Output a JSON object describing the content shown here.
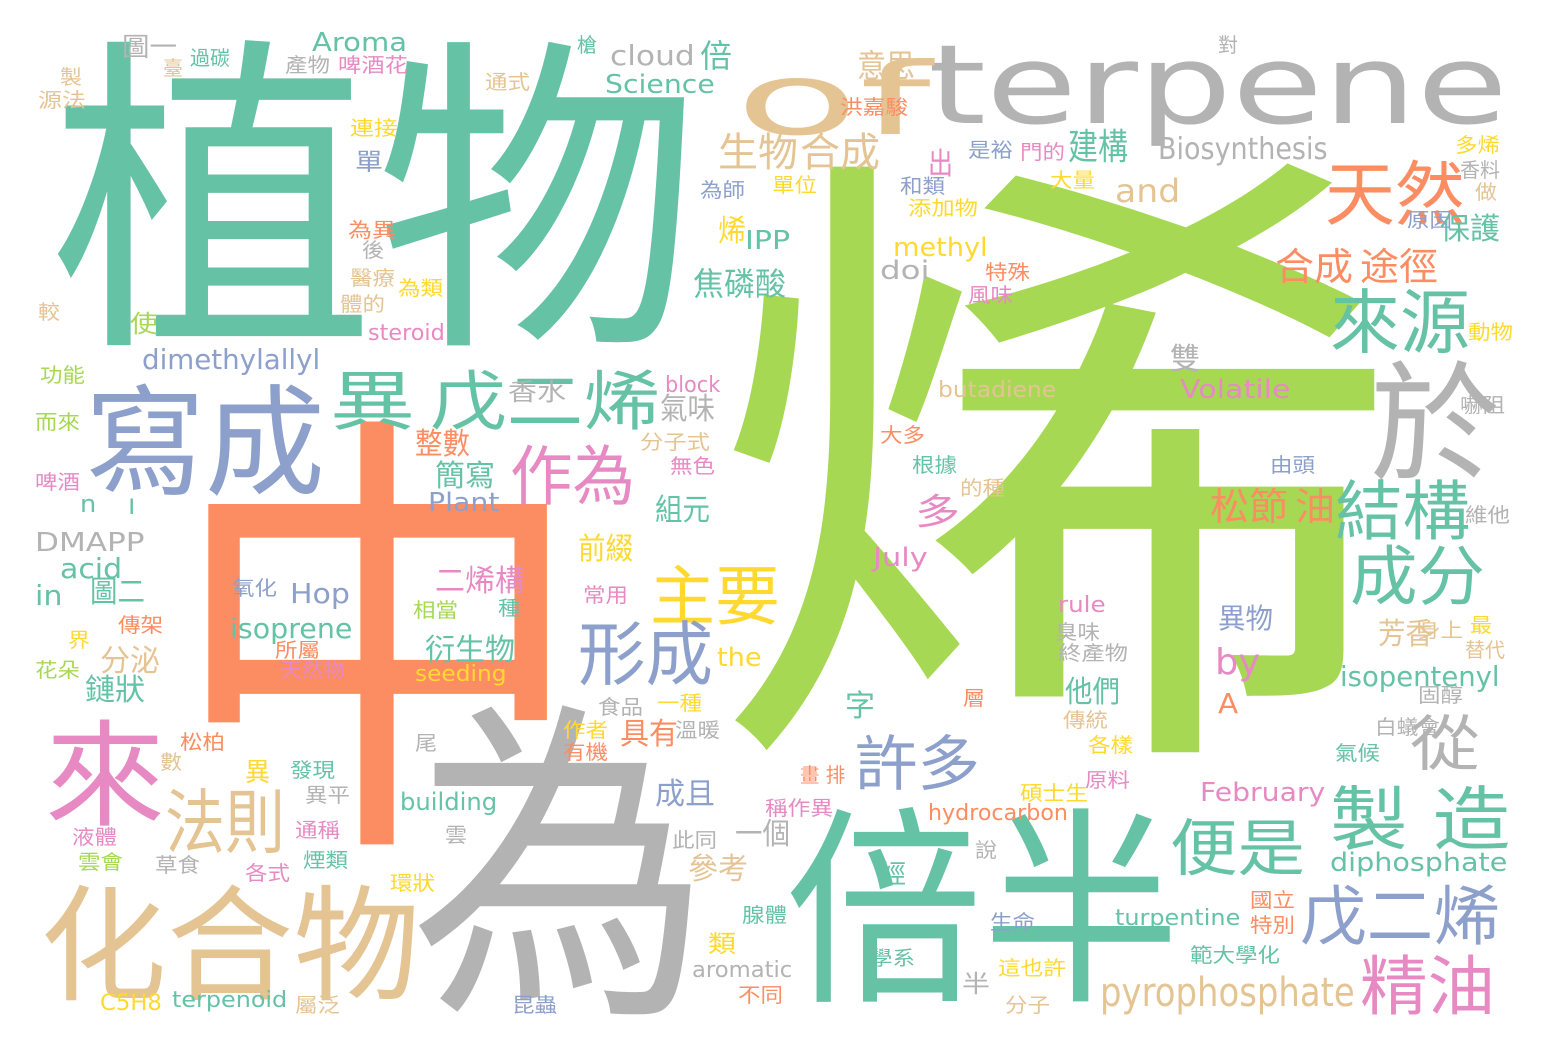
{
  "palette": {
    "green": "#66c2a5",
    "orange": "#fc8d62",
    "blue": "#8da0cb",
    "pink": "#e78ac3",
    "lime": "#a6d854",
    "yellow": "#ffd92f",
    "tan": "#e5c494",
    "gray": "#b3b3b3"
  },
  "words": [
    {
      "text": "烯",
      "color": "lime"
    },
    {
      "text": "中",
      "color": "orange"
    },
    {
      "text": "植物",
      "color": "green"
    },
    {
      "text": "為",
      "color": "gray"
    },
    {
      "text": "terpene",
      "color": "gray"
    },
    {
      "text": "倍半",
      "color": "green"
    },
    {
      "text": "寫成",
      "color": "blue"
    },
    {
      "text": "化合物",
      "color": "tan"
    },
    {
      "text": "of",
      "color": "tan"
    },
    {
      "text": "來",
      "color": "pink"
    },
    {
      "text": "於",
      "color": "gray"
    },
    {
      "text": "異",
      "color": "green"
    },
    {
      "text": "戊二烯",
      "color": "green"
    },
    {
      "text": "天然",
      "color": "orange"
    },
    {
      "text": "來源",
      "color": "green"
    },
    {
      "text": "結構",
      "color": "green"
    },
    {
      "text": "成分",
      "color": "green"
    },
    {
      "text": "製 造",
      "color": "green"
    },
    {
      "text": "作為",
      "color": "pink"
    },
    {
      "text": "主要",
      "color": "yellow"
    },
    {
      "text": "形成",
      "color": "blue"
    },
    {
      "text": "法則",
      "color": "tan"
    },
    {
      "text": "許多",
      "color": "blue"
    },
    {
      "text": "便是",
      "color": "green"
    },
    {
      "text": "戊二烯",
      "color": "blue"
    },
    {
      "text": "精油",
      "color": "pink"
    },
    {
      "text": "從",
      "color": "gray"
    },
    {
      "text": "生物",
      "color": "tan"
    },
    {
      "text": "合成",
      "color": "tan"
    },
    {
      "text": "pyrophosphate",
      "color": "tan"
    },
    {
      "text": "合成",
      "color": "orange"
    },
    {
      "text": "途徑",
      "color": "orange"
    },
    {
      "text": "松節",
      "color": "orange"
    },
    {
      "text": "油",
      "color": "orange"
    },
    {
      "text": "Biosynthesis",
      "color": "gray"
    },
    {
      "text": "and",
      "color": "tan"
    },
    {
      "text": "建構",
      "color": "green"
    },
    {
      "text": "意思",
      "color": "tan"
    },
    {
      "text": "cloud",
      "color": "gray"
    },
    {
      "text": "倍",
      "color": "green"
    },
    {
      "text": "Aroma",
      "color": "green"
    },
    {
      "text": "Science",
      "color": "green"
    },
    {
      "text": "dimethylallyl",
      "color": "blue"
    },
    {
      "text": "methyl",
      "color": "yellow"
    },
    {
      "text": "doi",
      "color": "gray"
    },
    {
      "text": "IPP",
      "color": "green"
    },
    {
      "text": "焦磷酸",
      "color": "green"
    },
    {
      "text": "Volatile",
      "color": "pink"
    },
    {
      "text": "isoprene",
      "color": "green"
    },
    {
      "text": "Hop",
      "color": "blue"
    },
    {
      "text": "diphosphate",
      "color": "green"
    },
    {
      "text": "isopentenyl",
      "color": "green"
    },
    {
      "text": "February",
      "color": "pink"
    },
    {
      "text": "hydrocarbon",
      "color": "orange"
    },
    {
      "text": "turpentine",
      "color": "green"
    },
    {
      "text": "aromatic",
      "color": "gray"
    },
    {
      "text": "terpenoid",
      "color": "green"
    },
    {
      "text": "C5H8",
      "color": "yellow"
    },
    {
      "text": "building",
      "color": "green"
    },
    {
      "text": "seeding",
      "color": "yellow"
    },
    {
      "text": "DMAPP",
      "color": "gray"
    },
    {
      "text": "Plant",
      "color": "blue"
    },
    {
      "text": "acid",
      "color": "green"
    },
    {
      "text": "in",
      "color": "green"
    },
    {
      "text": "the",
      "color": "yellow"
    },
    {
      "text": "by",
      "color": "pink"
    },
    {
      "text": "A",
      "color": "orange"
    },
    {
      "text": "July",
      "color": "pink"
    },
    {
      "text": "rule",
      "color": "pink"
    },
    {
      "text": "block",
      "color": "pink"
    },
    {
      "text": "butadiene",
      "color": "tan"
    },
    {
      "text": "steroid",
      "color": "pink"
    },
    {
      "text": "保護",
      "color": "green"
    },
    {
      "text": "二烯構",
      "color": "pink"
    },
    {
      "text": "衍生物",
      "color": "green"
    },
    {
      "text": "圖二",
      "color": "green"
    },
    {
      "text": "分泌",
      "color": "tan"
    },
    {
      "text": "鏈狀",
      "color": "green"
    },
    {
      "text": "前綴",
      "color": "yellow"
    },
    {
      "text": "組元",
      "color": "green"
    },
    {
      "text": "簡寫",
      "color": "green"
    },
    {
      "text": "整數",
      "color": "orange"
    },
    {
      "text": "氣味",
      "color": "gray"
    },
    {
      "text": "香水",
      "color": "gray"
    },
    {
      "text": "雙",
      "color": "gray"
    },
    {
      "text": "多",
      "color": "pink"
    },
    {
      "text": "異物",
      "color": "blue"
    },
    {
      "text": "芳香",
      "color": "tan"
    },
    {
      "text": "他們",
      "color": "green"
    },
    {
      "text": "具有",
      "color": "orange"
    },
    {
      "text": "成且",
      "color": "blue"
    },
    {
      "text": "參考",
      "color": "tan"
    },
    {
      "text": "一個",
      "color": "gray"
    },
    {
      "text": "烯",
      "color": "yellow"
    },
    {
      "text": "出",
      "color": "pink"
    },
    {
      "text": "圖一",
      "color": "gray"
    },
    {
      "text": "過碳",
      "color": "green"
    },
    {
      "text": "產物",
      "color": "gray"
    },
    {
      "text": "啤酒花",
      "color": "pink"
    },
    {
      "text": "通式",
      "color": "tan"
    },
    {
      "text": "洪嘉駿",
      "color": "orange"
    },
    {
      "text": "連接",
      "color": "yellow"
    },
    {
      "text": "單",
      "color": "blue"
    },
    {
      "text": "製",
      "color": "tan"
    },
    {
      "text": "源法",
      "color": "tan"
    },
    {
      "text": "是裕",
      "color": "blue"
    },
    {
      "text": "門的",
      "color": "pink"
    },
    {
      "text": "大量",
      "color": "yellow"
    },
    {
      "text": "和類",
      "color": "blue"
    },
    {
      "text": "添加物",
      "color": "yellow"
    },
    {
      "text": "單位",
      "color": "yellow"
    },
    {
      "text": "為師",
      "color": "blue"
    },
    {
      "text": "原因",
      "color": "blue"
    },
    {
      "text": "香料",
      "color": "gray"
    },
    {
      "text": "做",
      "color": "tan"
    },
    {
      "text": "多烯",
      "color": "yellow"
    },
    {
      "text": "為異",
      "color": "orange"
    },
    {
      "text": "後",
      "color": "gray"
    },
    {
      "text": "醫療",
      "color": "tan"
    },
    {
      "text": "為類",
      "color": "yellow"
    },
    {
      "text": "體的",
      "color": "tan"
    },
    {
      "text": "特殊",
      "color": "orange"
    },
    {
      "text": "風味",
      "color": "pink"
    },
    {
      "text": "較",
      "color": "tan"
    },
    {
      "text": "功能",
      "color": "lime"
    },
    {
      "text": "而來",
      "color": "lime"
    },
    {
      "text": "啤酒",
      "color": "pink"
    },
    {
      "text": "使",
      "color": "lime"
    },
    {
      "text": "動物",
      "color": "yellow"
    },
    {
      "text": "嚇阻",
      "color": "gray"
    },
    {
      "text": "由頭",
      "color": "blue"
    },
    {
      "text": "維他",
      "color": "gray"
    },
    {
      "text": "根據",
      "color": "green"
    },
    {
      "text": "的種",
      "color": "tan"
    },
    {
      "text": "大多",
      "color": "orange"
    },
    {
      "text": "分子式",
      "color": "tan"
    },
    {
      "text": "無色",
      "color": "pink"
    },
    {
      "text": "最",
      "color": "yellow"
    },
    {
      "text": "替代",
      "color": "tan"
    },
    {
      "text": "身上",
      "color": "tan"
    },
    {
      "text": "臭味",
      "color": "gray"
    },
    {
      "text": "終產物",
      "color": "gray"
    },
    {
      "text": "固醇",
      "color": "gray"
    },
    {
      "text": "白蟻會",
      "color": "gray"
    },
    {
      "text": "氣候",
      "color": "green"
    },
    {
      "text": "氧化",
      "color": "blue"
    },
    {
      "text": "所屬",
      "color": "orange"
    },
    {
      "text": "天然物",
      "color": "pink"
    },
    {
      "text": "相當",
      "color": "lime"
    },
    {
      "text": "種",
      "color": "green"
    },
    {
      "text": "常用",
      "color": "pink"
    },
    {
      "text": "界",
      "color": "yellow"
    },
    {
      "text": "傳架",
      "color": "orange"
    },
    {
      "text": "花朵",
      "color": "lime"
    },
    {
      "text": "液體",
      "color": "pink"
    },
    {
      "text": "雲會",
      "color": "lime"
    },
    {
      "text": "草食",
      "color": "gray"
    },
    {
      "text": "各式",
      "color": "pink"
    },
    {
      "text": "煙類",
      "color": "green"
    },
    {
      "text": "通稱",
      "color": "pink"
    },
    {
      "text": "異平",
      "color": "gray"
    },
    {
      "text": "發現",
      "color": "green"
    },
    {
      "text": "異",
      "color": "yellow"
    },
    {
      "text": "松柏",
      "color": "orange"
    },
    {
      "text": "數",
      "color": "tan"
    },
    {
      "text": "食品",
      "color": "gray"
    },
    {
      "text": "一種",
      "color": "yellow"
    },
    {
      "text": "有機",
      "color": "orange"
    },
    {
      "text": "作者",
      "color": "yellow"
    },
    {
      "text": "溫暖",
      "color": "gray"
    },
    {
      "text": "尾",
      "color": "gray"
    },
    {
      "text": "雲",
      "color": "gray"
    },
    {
      "text": "此同",
      "color": "gray"
    },
    {
      "text": "字",
      "color": "green"
    },
    {
      "text": "層",
      "color": "orange"
    },
    {
      "text": "傳統",
      "color": "tan"
    },
    {
      "text": "各樣",
      "color": "yellow"
    },
    {
      "text": "碩士生",
      "color": "yellow"
    },
    {
      "text": "原料",
      "color": "pink"
    },
    {
      "text": "畫 排",
      "color": "orange"
    },
    {
      "text": "稱作異",
      "color": "pink"
    },
    {
      "text": "說",
      "color": "gray"
    },
    {
      "text": "烴",
      "color": "green"
    },
    {
      "text": "腺體",
      "color": "green"
    },
    {
      "text": "生命",
      "color": "blue"
    },
    {
      "text": "類",
      "color": "yellow"
    },
    {
      "text": "半",
      "color": "gray"
    },
    {
      "text": "學系",
      "color": "green"
    },
    {
      "text": "這也許",
      "color": "yellow"
    },
    {
      "text": "不同",
      "color": "orange"
    },
    {
      "text": "分子",
      "color": "tan"
    },
    {
      "text": "國立",
      "color": "orange"
    },
    {
      "text": "特別",
      "color": "orange"
    },
    {
      "text": "範大學化",
      "color": "green"
    },
    {
      "text": "環狀",
      "color": "yellow"
    },
    {
      "text": "屬泛",
      "color": "tan"
    },
    {
      "text": "昆蟲",
      "color": "blue"
    },
    {
      "text": "n",
      "color": "green"
    },
    {
      "text": "l",
      "color": "green"
    },
    {
      "text": "臺",
      "color": "tan"
    },
    {
      "text": "對",
      "color": "gray"
    },
    {
      "text": "槍",
      "color": "green"
    }
  ]
}
